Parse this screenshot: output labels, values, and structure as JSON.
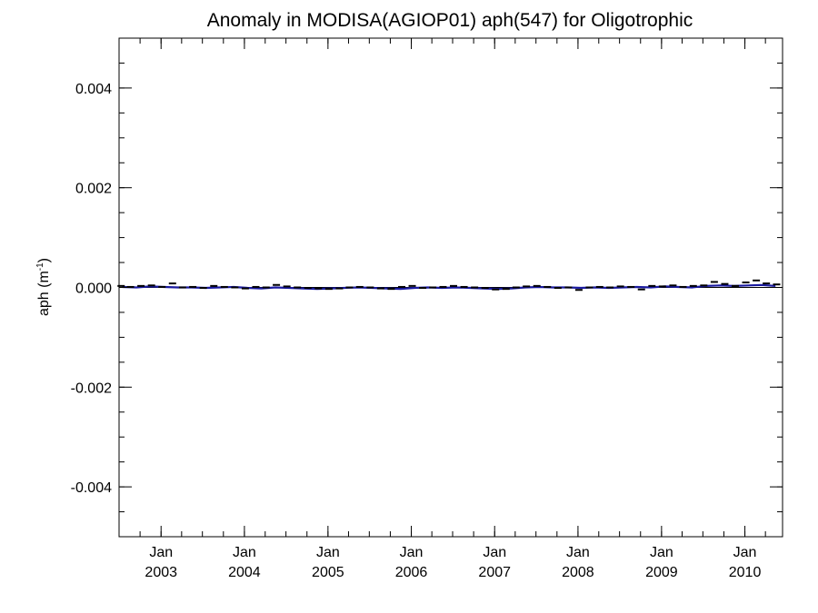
{
  "chart_data": {
    "type": "line",
    "title": "Anomaly in MODISA(AGIOP01) aph(547) for Oligotrophic",
    "xlabel": "",
    "ylabel": "aph (m",
    "ylabel_sup": "-1",
    "ylabel_close": ")",
    "ylim": [
      -0.005,
      0.005
    ],
    "xlim": [
      "2002-07-01",
      "2010-06-15"
    ],
    "yticks": [
      -0.004,
      -0.002,
      0.0,
      0.002,
      0.004
    ],
    "ytick_labels": [
      "-0.004",
      "-0.002",
      "0.000",
      "0.002",
      "0.004"
    ],
    "yminor_step": 0.0005,
    "xticks": [
      {
        "date": "2003-01-01",
        "line1": "Jan",
        "line2": "2003"
      },
      {
        "date": "2004-01-01",
        "line1": "Jan",
        "line2": "2004"
      },
      {
        "date": "2005-01-01",
        "line1": "Jan",
        "line2": "2005"
      },
      {
        "date": "2006-01-01",
        "line1": "Jan",
        "line2": "2006"
      },
      {
        "date": "2007-01-01",
        "line1": "Jan",
        "line2": "2007"
      },
      {
        "date": "2008-01-01",
        "line1": "Jan",
        "line2": "2008"
      },
      {
        "date": "2009-01-01",
        "line1": "Jan",
        "line2": "2009"
      },
      {
        "date": "2010-01-01",
        "line1": "Jan",
        "line2": "2010"
      }
    ],
    "reference_line": 0,
    "grid": false,
    "series": [
      {
        "color": "#1a1aa0",
        "style": "line",
        "x": [
          "2002-07-15",
          "2002-09-15",
          "2002-11-15",
          "2003-01-15",
          "2003-03-15",
          "2003-05-15",
          "2003-07-15",
          "2003-09-15",
          "2003-11-15",
          "2004-01-15",
          "2004-03-15",
          "2004-05-15",
          "2004-07-15",
          "2004-09-15",
          "2004-11-15",
          "2005-01-15",
          "2005-03-15",
          "2005-05-15",
          "2005-07-15",
          "2005-09-15",
          "2005-11-15",
          "2006-01-15",
          "2006-03-15",
          "2006-05-15",
          "2006-07-15",
          "2006-09-15",
          "2006-11-15",
          "2007-01-15",
          "2007-03-15",
          "2007-05-15",
          "2007-07-15",
          "2007-09-15",
          "2007-11-15",
          "2008-01-15",
          "2008-03-15",
          "2008-05-15",
          "2008-07-15",
          "2008-09-15",
          "2008-11-15",
          "2009-01-15",
          "2009-03-15",
          "2009-05-15",
          "2009-07-15",
          "2009-09-15",
          "2009-11-15",
          "2010-01-15",
          "2010-03-15",
          "2010-05-15"
        ],
        "values": [
          1e-05,
          0.0,
          2e-05,
          1e-05,
          0.0,
          0.0,
          -1e-05,
          0.0,
          1e-05,
          -1e-05,
          -2e-05,
          0.0,
          -1e-05,
          -2e-05,
          -3e-05,
          -2e-05,
          -1e-05,
          0.0,
          -1e-05,
          -2e-05,
          -3e-05,
          -1e-05,
          0.0,
          -1e-05,
          0.0,
          -1e-05,
          -2e-05,
          -3e-05,
          -2e-05,
          0.0,
          1e-05,
          0.0,
          0.0,
          -1e-05,
          0.0,
          -1e-05,
          0.0,
          1e-05,
          0.0,
          2e-05,
          1e-05,
          0.0,
          3e-05,
          4e-05,
          3e-05,
          4e-05,
          5e-05,
          3e-05
        ]
      },
      {
        "color": "#000000",
        "style": "dash",
        "x": [
          "2002-07-10",
          "2002-08-20",
          "2002-10-05",
          "2002-11-20",
          "2003-01-05",
          "2003-02-20",
          "2003-04-05",
          "2003-05-20",
          "2003-07-05",
          "2003-08-20",
          "2003-10-05",
          "2003-11-20",
          "2004-01-05",
          "2004-02-20",
          "2004-04-05",
          "2004-05-20",
          "2004-07-05",
          "2004-08-20",
          "2004-10-05",
          "2004-11-20",
          "2005-01-05",
          "2005-02-20",
          "2005-04-05",
          "2005-05-20",
          "2005-07-05",
          "2005-08-20",
          "2005-10-05",
          "2005-11-20",
          "2006-01-05",
          "2006-02-20",
          "2006-04-05",
          "2006-05-20",
          "2006-07-05",
          "2006-08-20",
          "2006-10-05",
          "2006-11-20",
          "2007-01-05",
          "2007-02-20",
          "2007-04-05",
          "2007-05-20",
          "2007-07-05",
          "2007-08-20",
          "2007-10-05",
          "2007-11-20",
          "2008-01-05",
          "2008-02-20",
          "2008-04-05",
          "2008-05-20",
          "2008-07-05",
          "2008-08-20",
          "2008-10-05",
          "2008-11-20",
          "2009-01-05",
          "2009-02-20",
          "2009-04-05",
          "2009-05-20",
          "2009-07-05",
          "2009-08-20",
          "2009-10-05",
          "2009-11-20",
          "2010-01-05",
          "2010-02-20",
          "2010-04-05",
          "2010-05-20"
        ],
        "values": [
          3e-05,
          1e-05,
          3e-05,
          4e-05,
          1e-05,
          8e-05,
          0.0,
          1e-05,
          -1e-05,
          3e-05,
          1e-05,
          0.0,
          -2e-05,
          1e-05,
          0.0,
          5e-05,
          2e-05,
          0.0,
          -1e-05,
          -2e-05,
          -3e-05,
          -2e-05,
          0.0,
          1e-05,
          0.0,
          -2e-05,
          -3e-05,
          1e-05,
          3e-05,
          -1e-05,
          0.0,
          1e-05,
          3e-05,
          1e-05,
          0.0,
          -1e-05,
          -4e-05,
          -3e-05,
          0.0,
          2e-05,
          3e-05,
          1e-05,
          -1e-05,
          0.0,
          -5e-05,
          0.0,
          1e-05,
          0.0,
          2e-05,
          1e-05,
          -4e-05,
          3e-05,
          2e-05,
          4e-05,
          1e-05,
          3e-05,
          4e-05,
          0.00011,
          7e-05,
          3e-05,
          0.0001,
          0.00014,
          8e-05,
          6e-05
        ]
      }
    ]
  }
}
